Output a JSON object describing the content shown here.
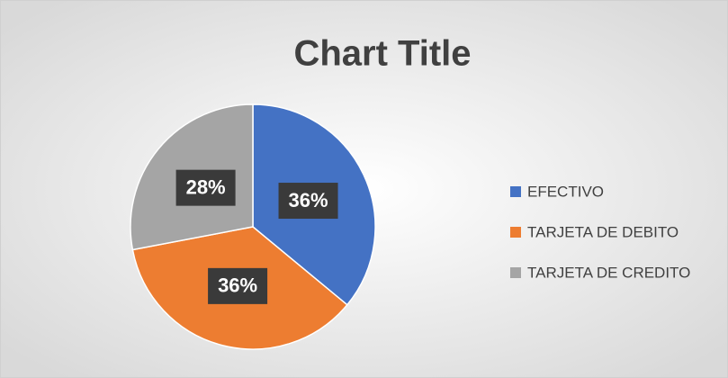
{
  "chart_data": {
    "type": "pie",
    "title": "Chart Title",
    "categories": [
      "EFECTIVO",
      "TARJETA DE DEBITO",
      "TARJETA DE CREDITO"
    ],
    "values": [
      36,
      36,
      28
    ],
    "value_labels": [
      "36%",
      "36%",
      "28%"
    ],
    "colors": [
      "#4472c4",
      "#ed7d31",
      "#a5a5a5"
    ],
    "legend": "right"
  }
}
